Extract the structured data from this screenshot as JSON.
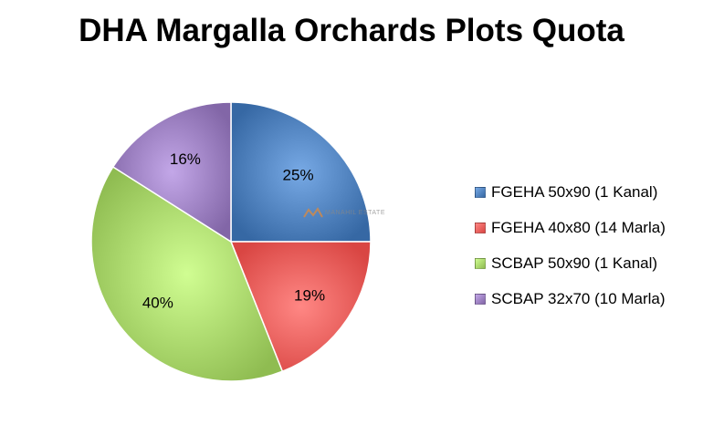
{
  "chart_data": {
    "type": "pie",
    "title": "DHA Margalla Orchards Plots Quota",
    "categories": [
      "FGEHA 50x90 (1 Kanal)",
      "FGEHA 40x80 (14 Marla)",
      "SCBAP 50x90 (1 Kanal)",
      "SCBAP 32x70 (10 Marla)"
    ],
    "values": [
      25,
      19,
      40,
      16
    ],
    "value_labels": [
      "25%",
      "19%",
      "40%",
      "16%"
    ],
    "colors": [
      "#4F81BD",
      "#F25F5C",
      "#A8D56A",
      "#9B7FC0"
    ],
    "legend_position": "right"
  },
  "watermark": {
    "text": "MANAHIL ESTATE",
    "icon": "manahil-estate-logo-icon"
  }
}
